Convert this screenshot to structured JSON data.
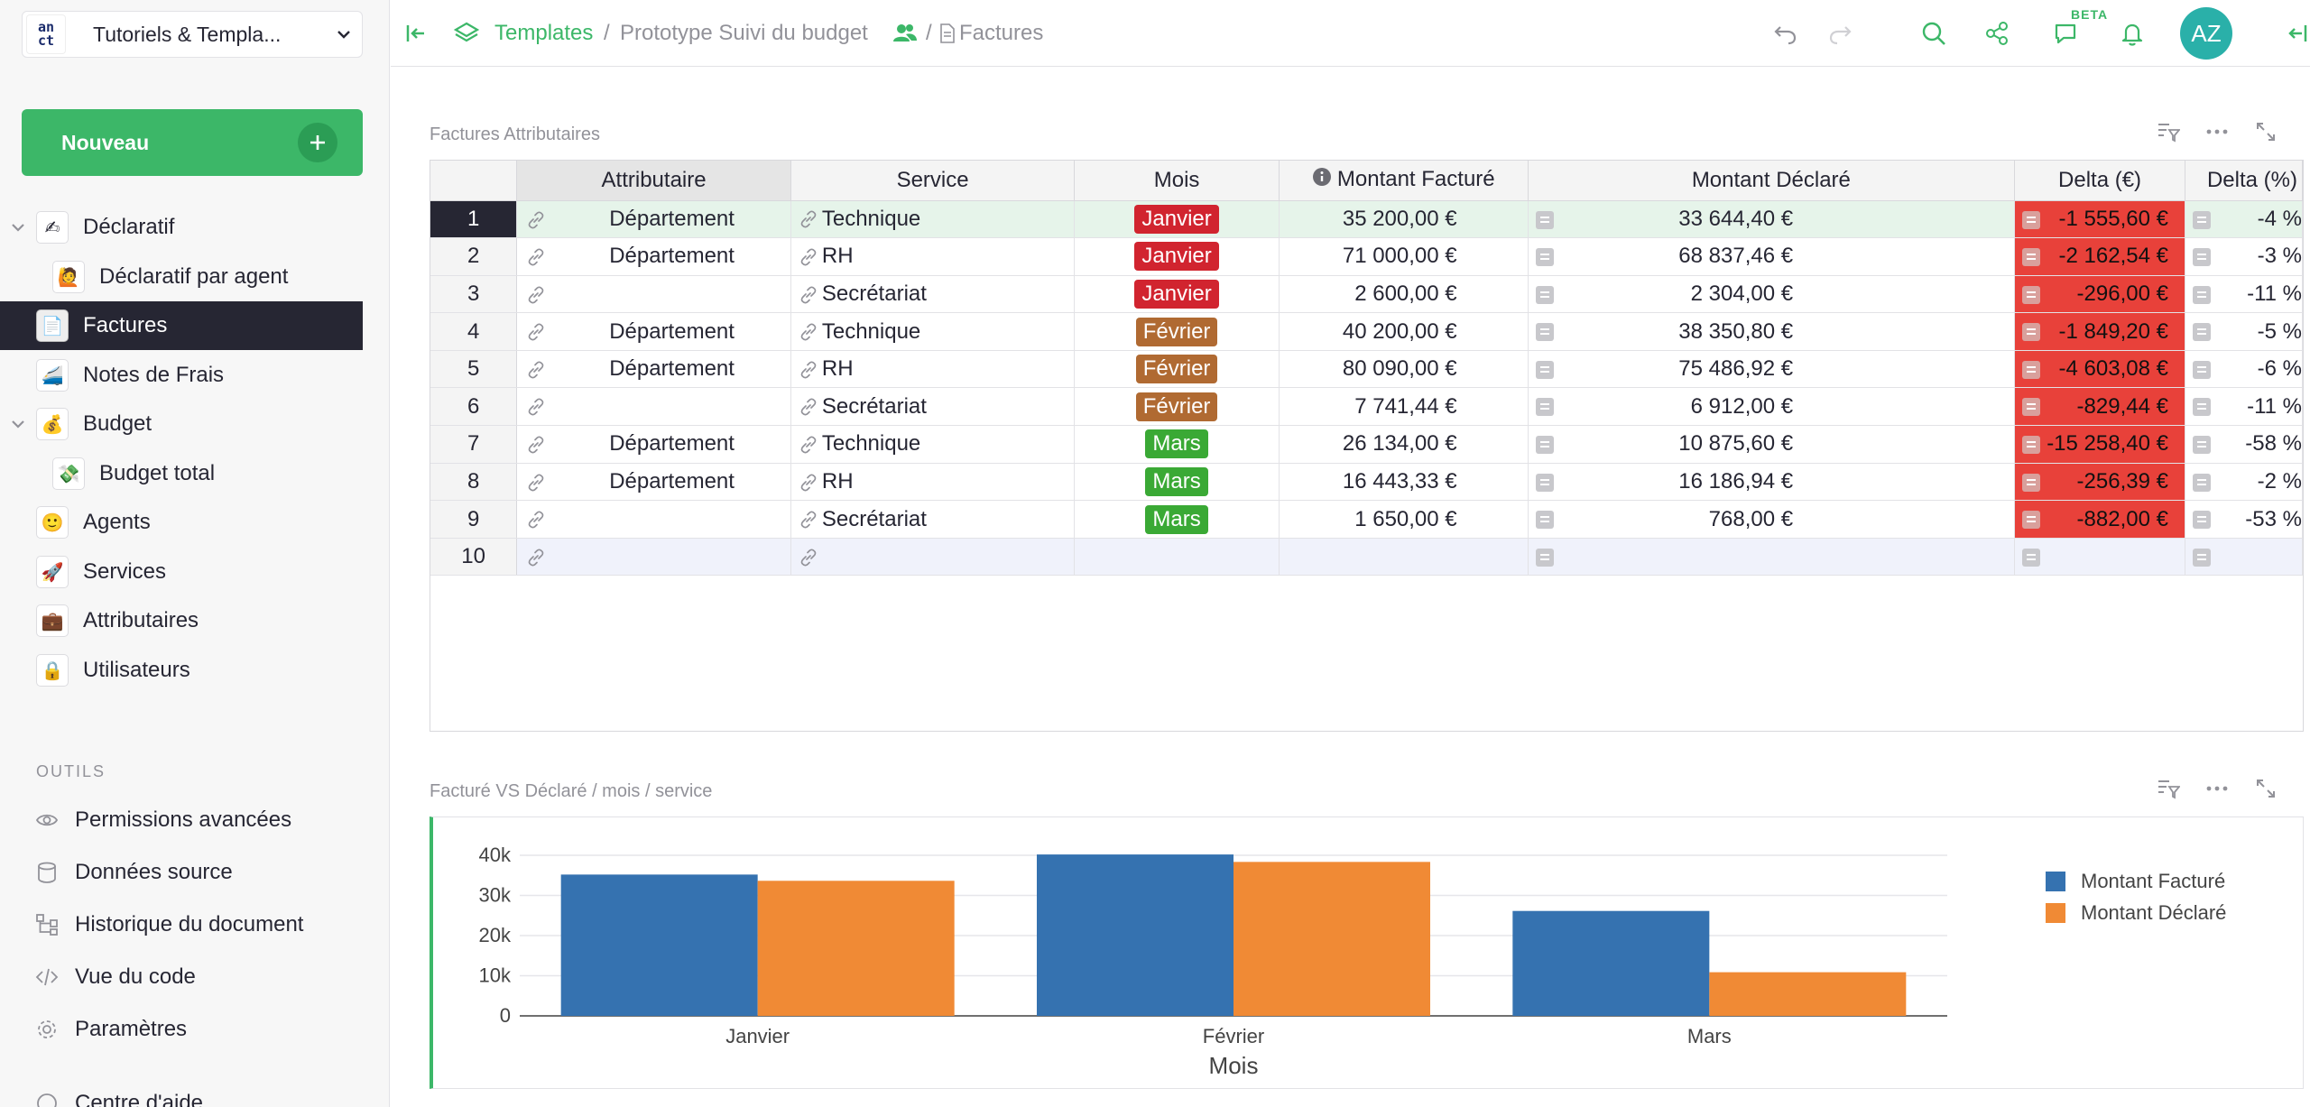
{
  "org": {
    "logo_top": "an",
    "logo_bottom": "ct",
    "name": "Tutoriels & Templa..."
  },
  "new_button": {
    "label": "Nouveau"
  },
  "pages": [
    {
      "label": "Déclaratif",
      "icon": "✍",
      "level": 0,
      "collapsible": true
    },
    {
      "label": "Déclaratif par agent",
      "icon": "🙋",
      "level": 1,
      "collapsible": false
    },
    {
      "label": "Factures",
      "icon": "📄",
      "level": 0,
      "collapsible": false,
      "active": true
    },
    {
      "label": "Notes de Frais",
      "icon": "🚄",
      "level": 0,
      "collapsible": false
    },
    {
      "label": "Budget",
      "icon": "💰",
      "level": 0,
      "collapsible": true
    },
    {
      "label": "Budget total",
      "icon": "💸",
      "level": 1,
      "collapsible": false
    },
    {
      "label": "Agents",
      "icon": "🙂",
      "level": 0,
      "collapsible": false
    },
    {
      "label": "Services",
      "icon": "🚀",
      "level": 0,
      "collapsible": false
    },
    {
      "label": "Attributaires",
      "icon": "💼",
      "level": 0,
      "collapsible": false
    },
    {
      "label": "Utilisateurs",
      "icon": "🔒",
      "level": 0,
      "collapsible": false
    }
  ],
  "tools": {
    "heading": "OUTILS",
    "items": [
      {
        "label": "Permissions avancées",
        "icon": "eye-icon"
      },
      {
        "label": "Données source",
        "icon": "database-icon"
      },
      {
        "label": "Historique du document",
        "icon": "history-icon"
      },
      {
        "label": "Vue du code",
        "icon": "code-icon"
      },
      {
        "label": "Paramètres",
        "icon": "settings-icon"
      },
      {
        "label": "Centre d'aide",
        "icon": "help-icon"
      }
    ]
  },
  "topbar": {
    "breadcrumb_root": "Templates",
    "separator": "/",
    "breadcrumb_doc": "Prototype Suivi du budget",
    "breadcrumb_page": "Factures",
    "beta_label": "BETA",
    "avatar_initials": "AZ",
    "avatar_color": "#2ab0a9"
  },
  "table_section": {
    "title": "Factures Attributaires",
    "columns": [
      "Attributaire",
      "Service",
      "Mois",
      "Montant Facturé",
      "Montant Déclaré",
      "Delta (€)",
      "Delta (%)"
    ],
    "rows": [
      {
        "n": "1",
        "attributaire": "Département",
        "service": "Technique",
        "mois": "Janvier",
        "facture": "35 200,00 €",
        "declare": "33 644,40 €",
        "delta": "-1 555,60 €",
        "pct": "-4 %"
      },
      {
        "n": "2",
        "attributaire": "Département",
        "service": "RH",
        "mois": "Janvier",
        "facture": "71 000,00 €",
        "declare": "68 837,46 €",
        "delta": "-2 162,54 €",
        "pct": "-3 %"
      },
      {
        "n": "3",
        "attributaire": "",
        "service": "Secrétariat",
        "mois": "Janvier",
        "facture": "2 600,00 €",
        "declare": "2 304,00 €",
        "delta": "-296,00 €",
        "pct": "-11 %"
      },
      {
        "n": "4",
        "attributaire": "Département",
        "service": "Technique",
        "mois": "Février",
        "facture": "40 200,00 €",
        "declare": "38 350,80 €",
        "delta": "-1 849,20 €",
        "pct": "-5 %"
      },
      {
        "n": "5",
        "attributaire": "Département",
        "service": "RH",
        "mois": "Février",
        "facture": "80 090,00 €",
        "declare": "75 486,92 €",
        "delta": "-4 603,08 €",
        "pct": "-6 %"
      },
      {
        "n": "6",
        "attributaire": "",
        "service": "Secrétariat",
        "mois": "Février",
        "facture": "7 741,44 €",
        "declare": "6 912,00 €",
        "delta": "-829,44 €",
        "pct": "-11 %"
      },
      {
        "n": "7",
        "attributaire": "Département",
        "service": "Technique",
        "mois": "Mars",
        "facture": "26 134,00 €",
        "declare": "10 875,60 €",
        "delta": "-15 258,40 €",
        "pct": "-58 %"
      },
      {
        "n": "8",
        "attributaire": "Département",
        "service": "RH",
        "mois": "Mars",
        "facture": "16 443,33 €",
        "declare": "16 186,94 €",
        "delta": "-256,39 €",
        "pct": "-2 %"
      },
      {
        "n": "9",
        "attributaire": "",
        "service": "Secrétariat",
        "mois": "Mars",
        "facture": "1 650,00 €",
        "declare": "768,00 €",
        "delta": "-882,00 €",
        "pct": "-53 %"
      },
      {
        "n": "10",
        "attributaire": "",
        "service": "",
        "mois": "",
        "facture": "",
        "declare": "",
        "delta": "",
        "pct": ""
      }
    ],
    "month_colors": {
      "Janvier": "#d1242f",
      "Février": "#b06a32",
      "Mars": "#3aa935"
    }
  },
  "chart_section": {
    "title": "Facturé VS Déclaré / mois / service"
  },
  "chart_data": {
    "type": "bar",
    "categories": [
      "Janvier",
      "Février",
      "Mars"
    ],
    "series": [
      {
        "name": "Montant Facturé",
        "values": [
          35200,
          40200,
          26134
        ],
        "color": "#3572b0"
      },
      {
        "name": "Montant Déclaré",
        "values": [
          33644.4,
          38350.8,
          10875.6
        ],
        "color": "#f08a35"
      }
    ],
    "xlabel": "Mois",
    "ylabel": "",
    "ylim": [
      0,
      40000
    ],
    "yticks": [
      0,
      10000,
      20000,
      30000,
      40000
    ],
    "ytick_labels": [
      "0",
      "10k",
      "20k",
      "30k",
      "40k"
    ],
    "grid": true,
    "legend": "right"
  }
}
